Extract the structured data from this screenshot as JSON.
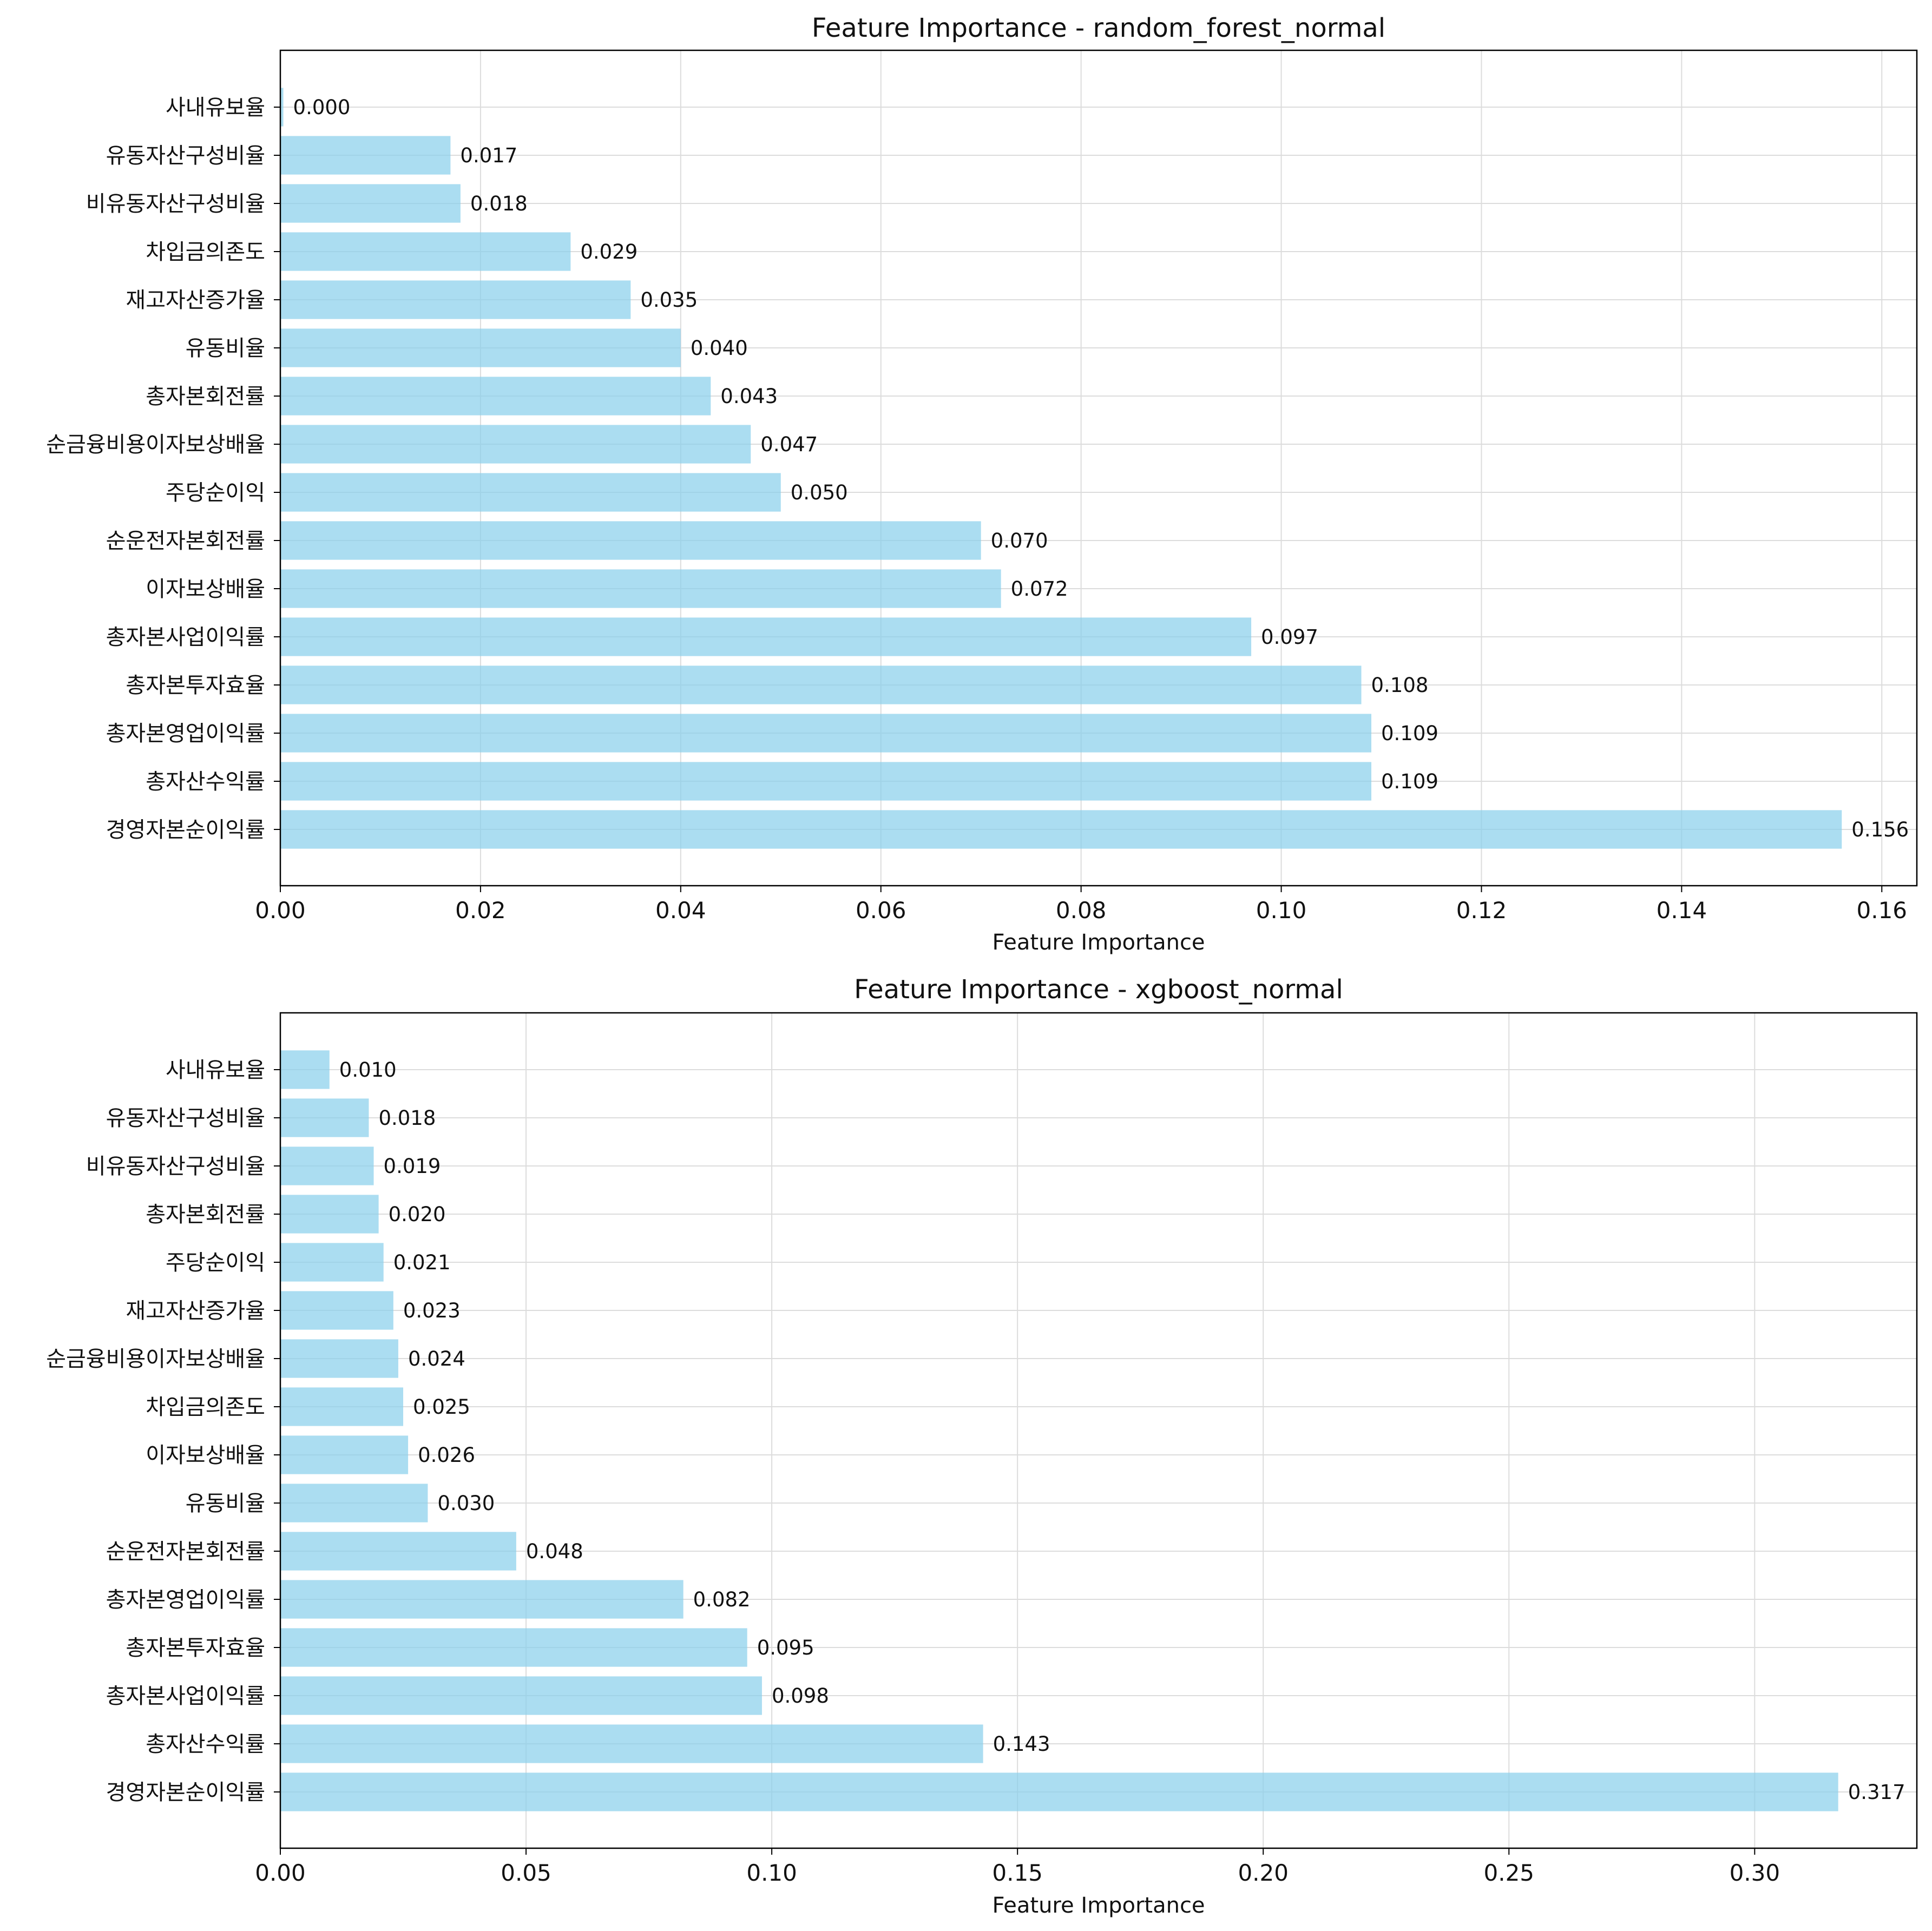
{
  "chart_data": [
    {
      "type": "bar",
      "orientation": "horizontal",
      "title": "Feature Importance - random_forest_normal",
      "xlabel": "Feature Importance",
      "ylabel": "",
      "xlim": [
        0,
        0.1635
      ],
      "xticks": [
        0.0,
        0.02,
        0.04,
        0.06,
        0.08,
        0.1,
        0.12,
        0.14,
        0.16
      ],
      "xtick_labels": [
        "0.00",
        "0.02",
        "0.04",
        "0.06",
        "0.08",
        "0.10",
        "0.12",
        "0.14",
        "0.16"
      ],
      "grid": true,
      "bar_color": "#87CEEB",
      "categories": [
        "사내유보율",
        "유동자산구성비율",
        "비유동자산구성비율",
        "차입금의존도",
        "재고자산증가율",
        "유동비율",
        "총자본회전률",
        "순금융비용이자보상배율",
        "주당순이익",
        "순운전자본회전률",
        "이자보상배율",
        "총자본사업이익률",
        "총자본투자효율",
        "총자본영업이익률",
        "총자산수익률",
        "경영자본순이익률"
      ],
      "values": [
        0.0003,
        0.017,
        0.018,
        0.029,
        0.035,
        0.04,
        0.043,
        0.047,
        0.05,
        0.07,
        0.072,
        0.097,
        0.108,
        0.109,
        0.109,
        0.156
      ],
      "value_labels": [
        "0.000",
        "0.017",
        "0.018",
        "0.029",
        "0.035",
        "0.040",
        "0.043",
        "0.047",
        "0.050",
        "0.070",
        "0.072",
        "0.097",
        "0.108",
        "0.109",
        "0.109",
        "0.156"
      ]
    },
    {
      "type": "bar",
      "orientation": "horizontal",
      "title": "Feature Importance - xgboost_normal",
      "xlabel": "Feature Importance",
      "ylabel": "",
      "xlim": [
        0,
        0.333
      ],
      "xticks": [
        0.0,
        0.05,
        0.1,
        0.15,
        0.2,
        0.25,
        0.3
      ],
      "xtick_labels": [
        "0.00",
        "0.05",
        "0.10",
        "0.15",
        "0.20",
        "0.25",
        "0.30"
      ],
      "grid": true,
      "bar_color": "#87CEEB",
      "categories": [
        "사내유보율",
        "유동자산구성비율",
        "비유동자산구성비율",
        "총자본회전률",
        "주당순이익",
        "재고자산증가율",
        "순금융비용이자보상배율",
        "차입금의존도",
        "이자보상배율",
        "유동비율",
        "순운전자본회전률",
        "총자본영업이익률",
        "총자본투자효율",
        "총자본사업이익률",
        "총자산수익률",
        "경영자본순이익률"
      ],
      "values": [
        0.01,
        0.018,
        0.019,
        0.02,
        0.021,
        0.023,
        0.024,
        0.025,
        0.026,
        0.03,
        0.048,
        0.082,
        0.095,
        0.098,
        0.143,
        0.317
      ],
      "value_labels": [
        "0.010",
        "0.018",
        "0.019",
        "0.020",
        "0.021",
        "0.023",
        "0.024",
        "0.025",
        "0.026",
        "0.030",
        "0.048",
        "0.082",
        "0.095",
        "0.098",
        "0.143",
        "0.317"
      ]
    }
  ]
}
